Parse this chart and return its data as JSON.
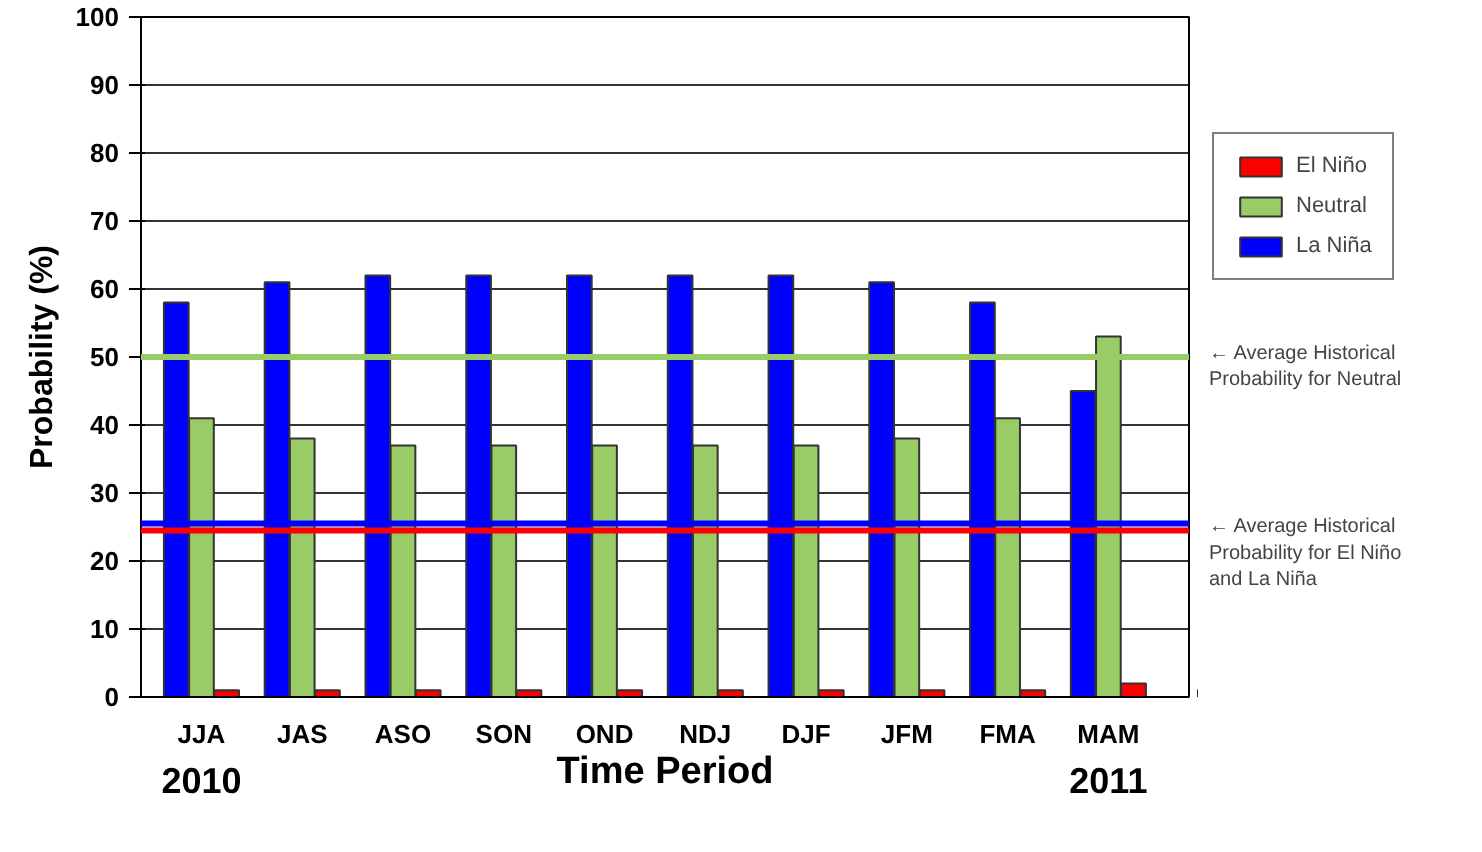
{
  "chart_data": {
    "type": "bar",
    "xlabel": "Time Period",
    "ylabel": "Probability (%)",
    "categories": [
      "JJA",
      "JAS",
      "ASO",
      "SON",
      "OND",
      "NDJ",
      "DJF",
      "JFM",
      "FMA",
      "MAM"
    ],
    "series": [
      {
        "name": "La Niña",
        "color": "#0000ff",
        "values": [
          58,
          61,
          62,
          62,
          62,
          62,
          62,
          61,
          58,
          45
        ]
      },
      {
        "name": "Neutral",
        "color": "#99cc66",
        "values": [
          41,
          38,
          37,
          37,
          37,
          37,
          37,
          38,
          41,
          53
        ]
      },
      {
        "name": "El Niño",
        "color": "#ff0000",
        "values": [
          1,
          1,
          1,
          1,
          1,
          1,
          1,
          1,
          1,
          2
        ]
      }
    ],
    "ylim": [
      0,
      100
    ],
    "yticks": [
      0,
      10,
      20,
      30,
      40,
      50,
      60,
      70,
      80,
      90,
      100
    ],
    "grid": "y",
    "legend": "top right",
    "ref_lines": [
      {
        "axis": "y",
        "value": 50,
        "label": "← Average Historical\nProbability for Neutral",
        "color": "#99cc66"
      },
      {
        "axis": "y",
        "value": 25.5,
        "label": null,
        "color": "#0000ff"
      },
      {
        "axis": "y",
        "value": 24.5,
        "label": "← Average Historical\nProbability for El Niño\nand La Niña",
        "color": "#ff0000"
      }
    ],
    "annotations": [
      "2010",
      "2011"
    ]
  }
}
